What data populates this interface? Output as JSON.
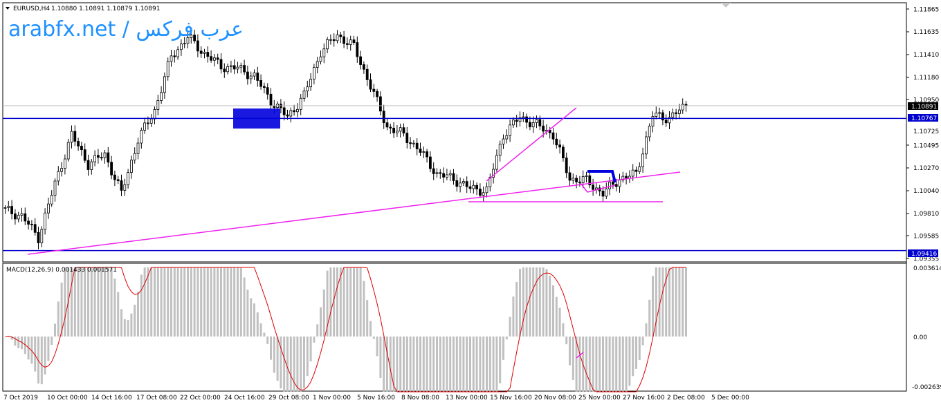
{
  "header": {
    "symbol": "EURUSD,H4",
    "ohlc": "1.10880 1.10891 1.10879 1.10891"
  },
  "watermark": "arabfx.net / عرب فركس",
  "price_axis": {
    "ticks": [
      "1.11865",
      "1.11635",
      "1.11410",
      "1.11180",
      "1.10950",
      "1.10725",
      "1.10495",
      "1.10270",
      "1.10040",
      "1.09810",
      "1.09585",
      "1.09355"
    ],
    "current_price_label": "1.10891",
    "hline_upper_label": "1.10767",
    "hline_lower_label": "1.09416"
  },
  "macd": {
    "label": "MACD(12,26,9) 0.001433 0.001571",
    "ticks": [
      "0.003614",
      "0.00",
      "-0.002639"
    ]
  },
  "time_axis": {
    "ticks": [
      "7 Oct 2019",
      "10 Oct 00:00",
      "14 Oct 16:00",
      "17 Oct 08:00",
      "22 Oct 00:00",
      "24 Oct 16:00",
      "29 Oct 08:00",
      "1 Nov 00:00",
      "5 Nov 16:00",
      "8 Nov 08:00",
      "13 Nov 00:00",
      "15 Nov 16:00",
      "20 Nov 08:00",
      "25 Nov 00:00",
      "27 Nov 16:00",
      "2 Dec 08:00",
      "5 Dec 00:00"
    ]
  },
  "colors": {
    "candle": "#000000",
    "hline": "#0000cc",
    "trendline": "#ee22ee",
    "zone": "#0000dd",
    "macd_hist": "#c0c0c0",
    "macd_signal": "#dd0000",
    "watermark": "#1e90ff"
  },
  "chart_data": {
    "type": "candlestick",
    "symbol": "EURUSD",
    "timeframe": "H4",
    "ylim": [
      1.093,
      1.1195
    ],
    "anchors": [
      [
        1.099,
        1.0983
      ],
      [
        1.0975,
        1.0977
      ],
      [
        1.095,
        1.0955
      ],
      [
        1.0985,
        1.101
      ],
      [
        1.105,
        1.106
      ],
      [
        1.1035,
        1.103
      ],
      [
        1.1048,
        1.104
      ],
      [
        1.101,
        1.1
      ],
      [
        1.105,
        1.1055
      ],
      [
        1.1068,
        1.1085
      ],
      [
        1.1135,
        1.114
      ],
      [
        1.115,
        1.116
      ],
      [
        1.115,
        1.1143
      ],
      [
        1.1148,
        1.113
      ],
      [
        1.115,
        1.1128
      ],
      [
        1.1145,
        1.112
      ],
      [
        1.11,
        1.1095
      ],
      [
        1.109,
        1.1078
      ],
      [
        1.1088,
        1.11
      ],
      [
        1.113,
        1.1145
      ],
      [
        1.116,
        1.1162
      ],
      [
        1.1158,
        1.115
      ],
      [
        1.1145,
        1.111
      ],
      [
        1.108,
        1.1068
      ],
      [
        1.107,
        1.106
      ],
      [
        1.105,
        1.1043
      ],
      [
        1.103,
        1.102
      ],
      [
        1.102,
        1.1015
      ],
      [
        1.101,
        1.1005
      ],
      [
        1.1008,
        1.1003
      ],
      [
        1.103,
        1.106
      ],
      [
        1.1078,
        1.1078
      ],
      [
        1.1075,
        1.107
      ],
      [
        1.108,
        1.106
      ],
      [
        1.1025,
        1.1015
      ],
      [
        1.1012,
        1.1013
      ],
      [
        1.1005,
        1.1
      ],
      [
        1.101,
        1.1015
      ],
      [
        1.101,
        1.102
      ],
      [
        1.108,
        1.108
      ],
      [
        1.108,
        1.1077
      ],
      [
        1.1085,
        1.109
      ]
    ],
    "horizontal_lines": [
      1.10767,
      1.09416
    ],
    "trendlines": [
      {
        "from": [
          "7 Oct 2019",
          1.0942
        ],
        "to": [
          "2 Dec 08:00",
          1.1025
        ]
      }
    ],
    "indicator": {
      "name": "MACD(12,26,9)",
      "values": [
        0.001433,
        0.001571
      ],
      "ylim": [
        -0.002639,
        0.003614
      ]
    }
  }
}
